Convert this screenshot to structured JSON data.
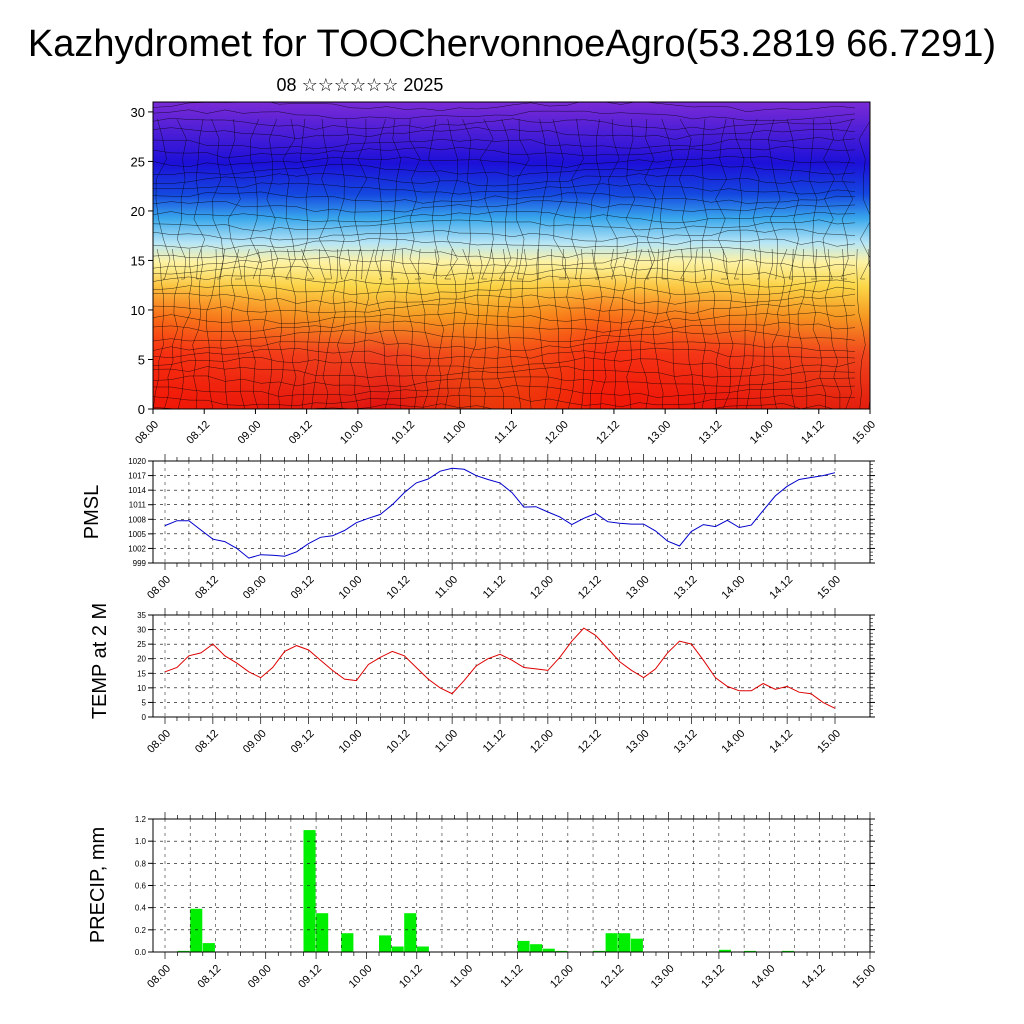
{
  "title": "Kazhydromet for TOOChervonnoeAgro(53.2819 66.7291)",
  "subtitle": "08 ☆☆☆☆☆☆ 2025",
  "colors": {
    "pmsl_line": "#0000cc",
    "temp_line": "#dd0000",
    "precip_bar": "#00ee00"
  },
  "chart_data": [
    {
      "id": "cross-section",
      "type": "heatmap",
      "description": "Vertical wind/temperature cross-section with streamlines",
      "x_ticks": [
        "08.00",
        "08.12",
        "09.00",
        "09.12",
        "10.00",
        "10.12",
        "11.00",
        "11.12",
        "12.00",
        "12.12",
        "13.00",
        "13.12",
        "14.00",
        "14.12",
        "15.00"
      ],
      "y_ticks": [
        0,
        5,
        10,
        15,
        20,
        25,
        30
      ],
      "ylim": [
        0,
        31
      ]
    },
    {
      "id": "pmsl",
      "type": "line",
      "ylabel": "PMSL",
      "y_ticks": [
        999,
        1002,
        1005,
        1008,
        1011,
        1014,
        1017,
        1020
      ],
      "ylim": [
        999,
        1020
      ],
      "x_ticks": [
        "08.00",
        "08.12",
        "09.00",
        "09.12",
        "10.00",
        "10.12",
        "11.00",
        "11.12",
        "12.00",
        "12.12",
        "13.00",
        "13.12",
        "14.00",
        "14.12",
        "15.00"
      ],
      "x_hours": [
        0,
        3,
        6,
        9,
        12,
        15,
        18,
        21,
        24,
        27,
        30,
        33,
        36,
        39,
        42,
        45,
        48,
        51,
        54,
        57,
        60,
        63,
        66,
        69,
        72,
        75,
        78,
        81,
        84,
        87,
        90,
        93,
        96,
        99,
        102,
        105,
        108,
        111,
        114,
        117,
        120,
        123,
        126,
        129,
        132,
        135,
        138,
        141,
        144,
        147,
        150,
        153,
        156,
        159,
        162,
        165,
        168
      ],
      "values": [
        1006.7,
        1007.7,
        1007.7,
        1005.8,
        1003.9,
        1003.4,
        1002.0,
        1000.0,
        1000.7,
        1000.6,
        1000.4,
        1001.3,
        1003.0,
        1004.3,
        1004.6,
        1005.7,
        1007.3,
        1008.2,
        1009.0,
        1011.0,
        1013.5,
        1015.5,
        1016.3,
        1017.9,
        1018.5,
        1018.3,
        1017.0,
        1016.2,
        1015.5,
        1013.5,
        1010.5,
        1010.6,
        1009.5,
        1008.5,
        1006.9,
        1008.2,
        1009.2,
        1007.5,
        1007.2,
        1007.0,
        1007.0,
        1005.6,
        1003.5,
        1002.5,
        1005.5,
        1006.9,
        1006.5,
        1007.8,
        1006.3,
        1006.8,
        1009.8,
        1012.8,
        1014.8,
        1016.2,
        1016.6,
        1017.0,
        1017.6
      ]
    },
    {
      "id": "temp2m",
      "type": "line",
      "ylabel": "TEMP at 2 M",
      "y_ticks": [
        0,
        5,
        10,
        15,
        20,
        25,
        30,
        35
      ],
      "ylim": [
        0,
        35
      ],
      "x_ticks": [
        "08.00",
        "08.12",
        "09.00",
        "09.12",
        "10.00",
        "10.12",
        "11.00",
        "11.12",
        "12.00",
        "12.12",
        "13.00",
        "13.12",
        "14.00",
        "14.12",
        "15.00"
      ],
      "x_hours": [
        0,
        3,
        6,
        9,
        12,
        15,
        18,
        21,
        24,
        27,
        30,
        33,
        36,
        39,
        42,
        45,
        48,
        51,
        54,
        57,
        60,
        63,
        66,
        69,
        72,
        75,
        78,
        81,
        84,
        87,
        90,
        93,
        96,
        99,
        102,
        105,
        108,
        111,
        114,
        117,
        120,
        123,
        126,
        129,
        132,
        135,
        138,
        141,
        144,
        147,
        150,
        153,
        156,
        159,
        162,
        165,
        168
      ],
      "values": [
        15.5,
        17,
        21,
        22,
        25,
        21,
        18.5,
        15.5,
        13.5,
        17,
        22.5,
        24.5,
        23,
        19.5,
        16,
        13,
        12.5,
        18,
        20.5,
        22.5,
        21,
        17,
        13,
        10,
        8,
        12.5,
        17.5,
        20,
        21.5,
        19.5,
        17,
        16.5,
        16,
        20.5,
        26,
        30.5,
        28,
        23.5,
        19,
        16,
        13.5,
        16.5,
        22,
        26,
        25,
        19.5,
        13.5,
        10.5,
        9,
        9,
        11.5,
        9.5,
        10.5,
        8.5,
        8,
        5,
        3
      ]
    },
    {
      "id": "precip",
      "type": "bar",
      "ylabel": "PRECIP, mm",
      "y_ticks": [
        "0.0",
        "0.2",
        "0.4",
        "0.6",
        "0.8",
        "1.0",
        "1.2"
      ],
      "ylim": [
        0,
        1.2
      ],
      "x_ticks": [
        "08.00",
        "08.12",
        "09.00",
        "09.12",
        "10.00",
        "10.12",
        "11.00",
        "11.12",
        "12.00",
        "12.12",
        "13.00",
        "13.12",
        "14.00",
        "14.12",
        "15.00"
      ],
      "bar_hours": [
        0,
        3,
        6,
        9,
        12,
        15,
        18,
        21,
        24,
        27,
        30,
        33,
        36,
        39,
        42,
        45,
        48,
        51,
        54,
        57,
        60,
        63,
        66,
        69,
        72,
        75,
        78,
        81,
        84,
        87,
        90,
        93,
        96,
        99,
        102,
        105,
        108,
        111,
        114,
        117,
        120,
        123,
        126,
        129,
        132,
        135,
        138,
        141,
        144,
        147,
        150,
        153,
        156,
        159,
        162,
        165
      ],
      "values": [
        0,
        0.01,
        0.39,
        0.08,
        0,
        0,
        0,
        0,
        0,
        0,
        0,
        1.1,
        0.35,
        0,
        0.17,
        0,
        0,
        0.15,
        0.05,
        0.35,
        0.05,
        0,
        0,
        0,
        0,
        0,
        0,
        0,
        0.1,
        0.07,
        0.03,
        0.01,
        0,
        0,
        0.01,
        0.17,
        0.17,
        0.12,
        0,
        0,
        0,
        0,
        0,
        0,
        0.02,
        0,
        0.01,
        0,
        0,
        0.01,
        0,
        0,
        0,
        0,
        0,
        0
      ]
    }
  ]
}
